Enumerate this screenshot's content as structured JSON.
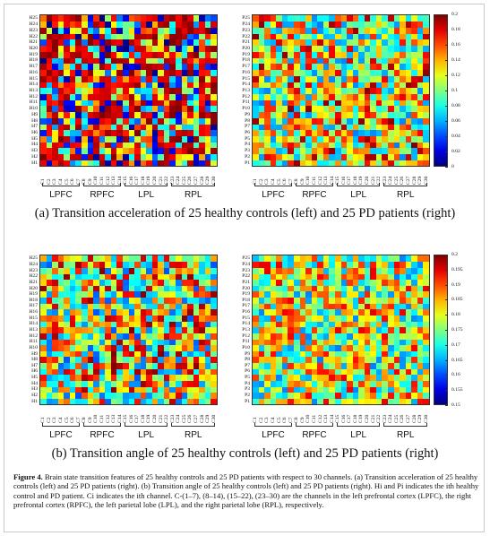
{
  "chart_data": [
    {
      "type": "heatmap",
      "panel": "a",
      "side": "left",
      "rows": [
        "H1",
        "H2",
        "H3",
        "H4",
        "H5",
        "H6",
        "H7",
        "H8",
        "H9",
        "H10",
        "H11",
        "H12",
        "H13",
        "H14",
        "H15",
        "H16",
        "H17",
        "H18",
        "H19",
        "H20",
        "H21",
        "H22",
        "H23",
        "H24",
        "H25"
      ],
      "columns": [
        "C1",
        "C2",
        "C3",
        "C4",
        "C5",
        "C6",
        "C7",
        "C8",
        "C9",
        "C10",
        "C11",
        "C12",
        "C13",
        "C14",
        "C15",
        "C16",
        "C17",
        "C18",
        "C19",
        "C20",
        "C21",
        "C22",
        "C23",
        "C24",
        "C25",
        "C26",
        "C27",
        "C28",
        "C29",
        "C30"
      ],
      "zlim": [
        0,
        0.2
      ],
      "colormap": "jet",
      "values_note": "cell values not individually readable"
    },
    {
      "type": "heatmap",
      "panel": "a",
      "side": "right",
      "rows": [
        "P1",
        "P2",
        "P3",
        "P4",
        "P5",
        "P6",
        "P7",
        "P8",
        "P9",
        "P10",
        "P11",
        "P12",
        "P13",
        "P14",
        "P15",
        "P16",
        "P17",
        "P18",
        "P19",
        "P20",
        "P21",
        "P22",
        "P23",
        "P24",
        "P25"
      ],
      "columns": [
        "C1",
        "C2",
        "C3",
        "C4",
        "C5",
        "C6",
        "C7",
        "C8",
        "C9",
        "C10",
        "C11",
        "C12",
        "C13",
        "C14",
        "C15",
        "C16",
        "C17",
        "C18",
        "C19",
        "C20",
        "C21",
        "C22",
        "C23",
        "C24",
        "C25",
        "C26",
        "C27",
        "C28",
        "C29",
        "C30"
      ],
      "zlim": [
        0,
        0.2
      ],
      "colormap": "jet",
      "colorbar_ticks": [
        "0",
        "0.02",
        "0.04",
        "0.06",
        "0.08",
        "0.1",
        "0.12",
        "0.14",
        "0.16",
        "0.18",
        "0.2"
      ],
      "values_note": "cell values not individually readable"
    },
    {
      "type": "heatmap",
      "panel": "b",
      "side": "left",
      "rows": [
        "H1",
        "H2",
        "H3",
        "H4",
        "H5",
        "H6",
        "H7",
        "H8",
        "H9",
        "H10",
        "H11",
        "H12",
        "H13",
        "H14",
        "H15",
        "H16",
        "H17",
        "H18",
        "H19",
        "H20",
        "H21",
        "H22",
        "H23",
        "H24",
        "H25"
      ],
      "columns": [
        "C1",
        "C2",
        "C3",
        "C4",
        "C5",
        "C6",
        "C7",
        "C8",
        "C9",
        "C10",
        "C11",
        "C12",
        "C13",
        "C14",
        "C15",
        "C16",
        "C17",
        "C18",
        "C19",
        "C20",
        "C21",
        "C22",
        "C23",
        "C24",
        "C25",
        "C26",
        "C27",
        "C28",
        "C29",
        "C30"
      ],
      "zlim": [
        0.15,
        0.2
      ],
      "colormap": "jet",
      "values_note": "cell values not individually readable"
    },
    {
      "type": "heatmap",
      "panel": "b",
      "side": "right",
      "rows": [
        "P1",
        "P2",
        "P3",
        "P4",
        "P5",
        "P6",
        "P7",
        "P8",
        "P9",
        "P10",
        "P11",
        "P12",
        "P13",
        "P14",
        "P15",
        "P16",
        "P17",
        "P18",
        "P19",
        "P20",
        "P21",
        "P22",
        "P23",
        "P24",
        "P25"
      ],
      "columns": [
        "C1",
        "C2",
        "C3",
        "C4",
        "C5",
        "C6",
        "C7",
        "C8",
        "C9",
        "C10",
        "C11",
        "C12",
        "C13",
        "C14",
        "C15",
        "C16",
        "C17",
        "C18",
        "C19",
        "C20",
        "C21",
        "C22",
        "C23",
        "C24",
        "C25",
        "C26",
        "C27",
        "C28",
        "C29",
        "C30"
      ],
      "zlim": [
        0.15,
        0.2
      ],
      "colormap": "jet",
      "colorbar_ticks": [
        "0.15",
        "0.155",
        "0.16",
        "0.165",
        "0.17",
        "0.175",
        "0.18",
        "0.185",
        "0.19",
        "0.195",
        "0.2"
      ],
      "values_note": "cell values not individually readable"
    }
  ],
  "groups": [
    "LPFC",
    "RPFC",
    "LPL",
    "RPL"
  ],
  "panel_a_caption": "(a) Transition acceleration of 25 healthy controls (left) and 25 PD patients (right)",
  "panel_b_caption": "(b) Transition angle of 25 healthy controls (left) and 25 PD patients (right)",
  "figure_caption": {
    "label": "Figure 4.",
    "text": " Brain state transition features of 25 healthy controls and 25 PD patients with respect to 30 channels. (a) Transition acceleration of 25 healthy controls (left) and 25 PD patients (right). (b) Transition angle of 25 healthy controls (left) and 25 PD patients (right). Hi and Pi indicates the ith healthy control and PD patient. Ci indicates the ith channel. C-(1–7), (8–14), (15–22), (23–30) are the channels in the left prefrontal cortex (LPFC), the right prefrontal cortex (RPFC), the left parietal lobe (LPL), and the right parietal lobe (RPL), respectively."
  }
}
